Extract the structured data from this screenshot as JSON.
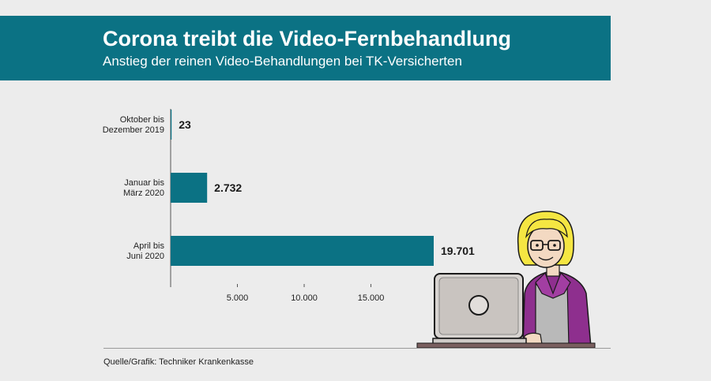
{
  "header": {
    "title": "Corona treibt die Video-Fernbehandlung",
    "subtitle": "Anstieg der reinen Video-Behandlungen bei TK-Versicherten"
  },
  "footer": {
    "source": "Quelle/Grafik: Techniker Krankenkasse"
  },
  "colors": {
    "banner": "#0b7284",
    "bar": "#0b7284",
    "background": "#ececec"
  },
  "chart_data": {
    "type": "bar",
    "orientation": "horizontal",
    "categories": [
      [
        "Oktober bis",
        "Dezember 2019"
      ],
      [
        "Januar bis",
        "März 2020"
      ],
      [
        "April bis",
        "Juni 2020"
      ]
    ],
    "values": [
      23,
      2732,
      19701
    ],
    "value_labels": [
      "23",
      "2.732",
      "19.701"
    ],
    "ticks": [
      5000,
      10000,
      15000
    ],
    "tick_labels": [
      "5.000",
      "10.000",
      "15.000"
    ],
    "xlim": [
      0,
      19701
    ],
    "grid": false,
    "legend": "none"
  },
  "illustration": {
    "icon": "person-at-laptop-icon"
  }
}
